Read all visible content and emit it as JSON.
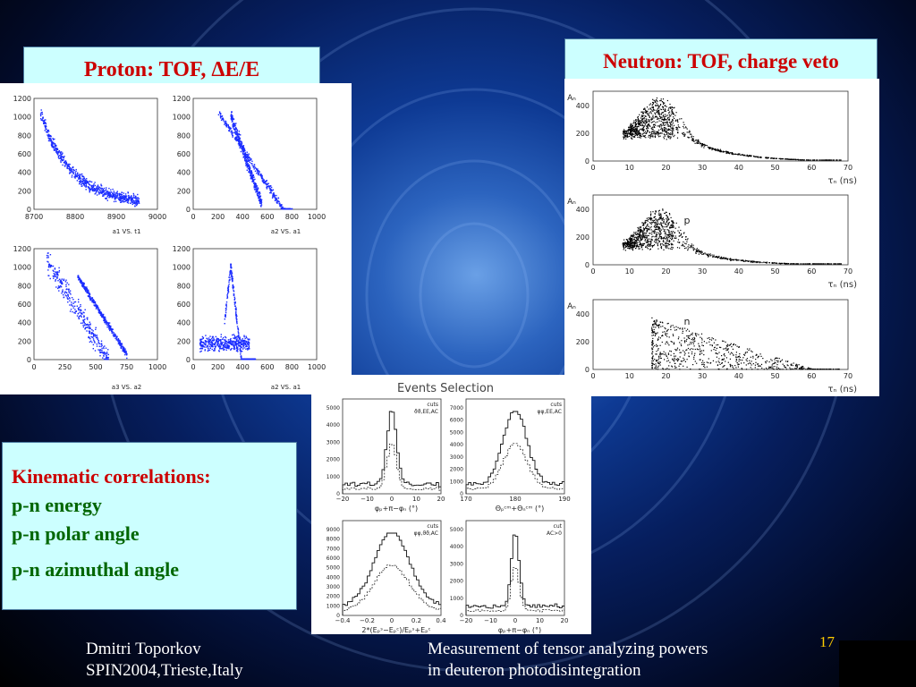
{
  "slide": {
    "proton_title_parts": [
      "Proton: TOF, ",
      "Δ",
      "E/E"
    ],
    "neutron_title": "Neutron: TOF, charge veto",
    "events_title": "Events Selection",
    "kinematic": {
      "heading": "Kinematic correlations:",
      "lines": [
        "p-n energy",
        "p-n polar angle",
        "p-n azimuthal angle"
      ]
    },
    "footer_left": [
      "Dmitri Toporkov",
      "SPIN2004,Trieste,Italy"
    ],
    "footer_right": [
      "Measurement of tensor analyzing powers",
      "in deuteron photodisintegration"
    ],
    "page_number": "17"
  },
  "colors": {
    "title_box": "#ccffff",
    "title_text": "#cc0000",
    "kin_heading": "#cc0000",
    "kin_lines": "#006600",
    "scatter_blue": "#1a2cff",
    "page_number": "#ffcc00"
  },
  "proton_plots": [
    {
      "caption": "a1 VS. t1",
      "yticks": [
        "1200",
        "1000",
        "800",
        "600",
        "400",
        "200",
        "0"
      ],
      "xticks": [
        "8700",
        "8800",
        "8900",
        "9000"
      ]
    },
    {
      "caption": "a2 VS. a1",
      "yticks": [
        "1200",
        "1000",
        "800",
        "600",
        "400",
        "200",
        "0"
      ],
      "xticks": [
        "0",
        "200",
        "400",
        "600",
        "800",
        "1000"
      ]
    },
    {
      "caption": "a3 VS. a2",
      "yticks": [
        "1200",
        "1000",
        "800",
        "600",
        "400",
        "200",
        "0"
      ],
      "xticks": [
        "0",
        "250",
        "500",
        "750",
        "1000"
      ]
    },
    {
      "caption": "a2 VS. a1",
      "yticks": [
        "1200",
        "1000",
        "800",
        "600",
        "400",
        "200",
        "0"
      ],
      "xticks": [
        "0",
        "200",
        "400",
        "600",
        "800",
        "1000"
      ]
    }
  ],
  "neutron_plots": [
    {
      "ylabel": "Aₙ",
      "yticks": [
        "400",
        "200",
        "0"
      ],
      "xticks": [
        "0",
        "10",
        "20",
        "30",
        "40",
        "50",
        "60",
        "70"
      ],
      "xlabel": "τₙ (ns)",
      "label": ""
    },
    {
      "ylabel": "Aₙ",
      "yticks": [
        "400",
        "200",
        "0"
      ],
      "xticks": [
        "0",
        "10",
        "20",
        "30",
        "40",
        "50",
        "60",
        "70"
      ],
      "xlabel": "τₙ (ns)",
      "label": "p"
    },
    {
      "ylabel": "Aₙ",
      "yticks": [
        "400",
        "200",
        "0"
      ],
      "xticks": [
        "0",
        "10",
        "20",
        "30",
        "40",
        "50",
        "60",
        "70"
      ],
      "xlabel": "τₙ (ns)",
      "label": "n"
    }
  ],
  "event_plots": [
    {
      "cuts": [
        "cuts",
        "ϑϑ,EE,AC"
      ],
      "yticks": [
        "5000",
        "4000",
        "3000",
        "2000",
        "1000",
        "0"
      ],
      "xticks": [
        "−20",
        "−10",
        "0",
        "10",
        "20"
      ],
      "xlabel": "φₚ+π−φₙ   (°)"
    },
    {
      "cuts": [
        "cuts",
        "φφ,EE,AC"
      ],
      "yticks": [
        "7000",
        "6000",
        "5000",
        "4000",
        "3000",
        "2000",
        "1000",
        "0"
      ],
      "xticks": [
        "170",
        "180",
        "190"
      ],
      "xlabel": "Θₚᶜᵐ+Θₙᶜᵐ   (°)"
    },
    {
      "cuts": [
        "cuts",
        "φφ,ϑϑ,AC"
      ],
      "yticks": [
        "9000",
        "8000",
        "7000",
        "6000",
        "5000",
        "4000",
        "3000",
        "2000",
        "1000",
        "0"
      ],
      "xticks": [
        "−0.4",
        "−0.2",
        "0",
        "0.2",
        "0.4"
      ],
      "xlabel": "2*(Eₚˢ−Eₚᶜ)/Eₚˢ+Eₚᶜ"
    },
    {
      "cuts": [
        "cut",
        "AC>0"
      ],
      "yticks": [
        "5000",
        "4000",
        "3000",
        "2000",
        "1000",
        "0"
      ],
      "xticks": [
        "−20",
        "−10",
        "0",
        "10",
        "20"
      ],
      "xlabel": "φₚ+π−φₙ   (°)"
    }
  ]
}
